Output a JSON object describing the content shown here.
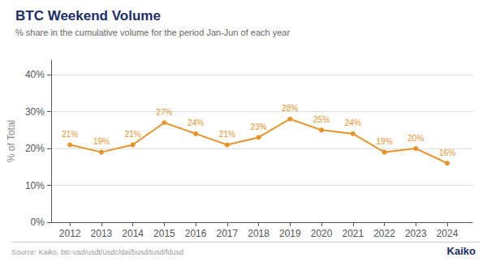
{
  "chart_data": {
    "type": "line",
    "title": "BTC Weekend Volume",
    "subtitle": "% share in the cumulative volume for the period Jan-Jun of each year",
    "ylabel": "% of Total",
    "x": [
      2012,
      2013,
      2014,
      2015,
      2016,
      2017,
      2018,
      2019,
      2020,
      2021,
      2022,
      2023,
      2024
    ],
    "values": [
      0.21,
      0.19,
      0.21,
      0.27,
      0.24,
      0.21,
      0.23,
      0.28,
      0.25,
      0.24,
      0.19,
      0.2,
      0.16
    ],
    "value_labels": [
      "21%",
      "19%",
      "21%",
      "27%",
      "24%",
      "21%",
      "23%",
      "28%",
      "25%",
      "24%",
      "19%",
      "20%",
      "16%"
    ],
    "color": "#E8932A",
    "data_labels": true,
    "xlim": [
      2011.4,
      2024.8
    ],
    "xticks": [
      2012,
      2013,
      2014,
      2015,
      2016,
      2017,
      2018,
      2019,
      2020,
      2021,
      2022,
      2023,
      2024
    ],
    "ylim": [
      0,
      0.44
    ],
    "yticks": [
      {
        "value": 0,
        "label": "0%"
      },
      {
        "value": 0.1,
        "label": "10%"
      },
      {
        "value": 0.2,
        "label": "20%"
      },
      {
        "value": 0.3,
        "label": "30%"
      },
      {
        "value": 0.4,
        "label": "40%"
      }
    ],
    "grid": true,
    "annotations": [
      "Source: Kaiko. btc-usd/usdt/usdc/dai/busd/tusd/fdusd",
      "Kaiko"
    ]
  }
}
